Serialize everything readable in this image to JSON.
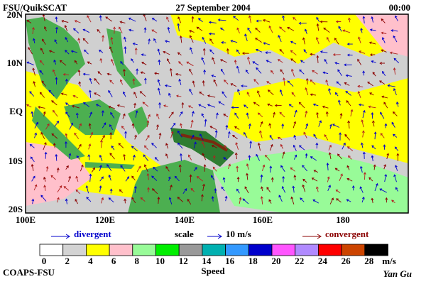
{
  "header": {
    "title": "FSU/QuikSCAT",
    "date": "27 September 2004",
    "time": "00:00"
  },
  "map": {
    "lat_labels": [
      "20N",
      "10N",
      "EQ",
      "10S",
      "20S"
    ],
    "lon_labels": [
      "100E",
      "120E",
      "140E",
      "160E",
      "180"
    ]
  },
  "legend": {
    "divergent": "divergent",
    "scale": "scale",
    "scale_value": "10 m/s",
    "convergent": "convergent"
  },
  "colorbar": {
    "colors": [
      "#ffffff",
      "#d3d3d3",
      "#ffff00",
      "#ffc0cb",
      "#98fb98",
      "#00ee00",
      "#999999",
      "#00b0b0",
      "#3399ff",
      "#0000cc",
      "#ff55ff",
      "#b08aff",
      "#ff0000",
      "#cc4400",
      "#000000"
    ],
    "labels": [
      0,
      2,
      4,
      6,
      8,
      10,
      12,
      14,
      16,
      18,
      20,
      22,
      24,
      26,
      28
    ],
    "unit": "m/s",
    "title": "Speed"
  },
  "footer": {
    "left": "COAPS-FSU",
    "author": "Yan Gu"
  }
}
